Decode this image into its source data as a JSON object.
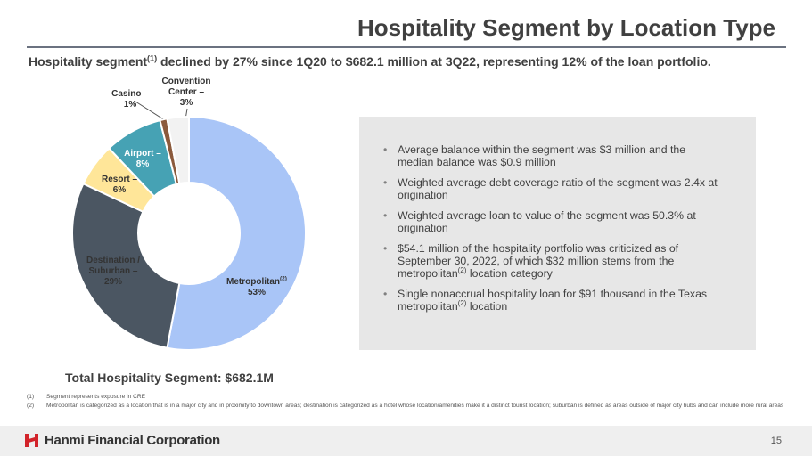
{
  "header": {
    "title": "Hospitality Segment by Location Type",
    "subtitle": [
      "Hospitality segment",
      "(1)",
      " declined by 27% since 1Q20 to $682.1 million at 3Q22, representing 12% of the loan portfolio."
    ]
  },
  "chart_data": {
    "type": "donut",
    "categories": [
      "Metropolitan",
      "Destination / Suburban –",
      "Resort –",
      "Airport –",
      "Casino –",
      "Convention Center –"
    ],
    "metropolitan_note": "(2)",
    "values": [
      53,
      29,
      6,
      8,
      1,
      3
    ],
    "value_labels": [
      "53%",
      "29%",
      "6%",
      "8%",
      "1%",
      "3%"
    ],
    "colors": [
      "#a9c5f7",
      "#4b5662",
      "#ffe699",
      "#46a2b4",
      "#8b5a3c",
      "#f2f2f2"
    ],
    "caption": "Total Hospitality Segment: $682.1M"
  },
  "bullets": [
    [
      "Average balance within the segment was $3 million and the median balance was $0.9 million"
    ],
    [
      "Weighted average debt coverage ratio of the segment was 2.4x at origination"
    ],
    [
      "Weighted average loan to value of the segment was 50.3% at origination"
    ],
    [
      "$54.1 million of the hospitality portfolio was criticized as of September 30, 2022, of which $32 million stems from the metropolitan",
      "(2)",
      " location category"
    ],
    [
      "Single nonaccrual hospitality loan for $91 thousand in the Texas metropolitan",
      "(2)",
      " location"
    ]
  ],
  "footnotes": [
    {
      "marker": "(1)",
      "text": "Segment represents exposure in CRE"
    },
    {
      "marker": "(2)",
      "text": "Metropolitan is categorized as a location that is in a major city and in proximity to downtown areas; destination is categorized as a hotel whose location/amenities make it a distinct tourist location; suburban is defined as areas outside of major city hubs and can include more rural areas"
    }
  ],
  "footer": {
    "company": "Hanmi Financial Corporation",
    "page": "15"
  }
}
